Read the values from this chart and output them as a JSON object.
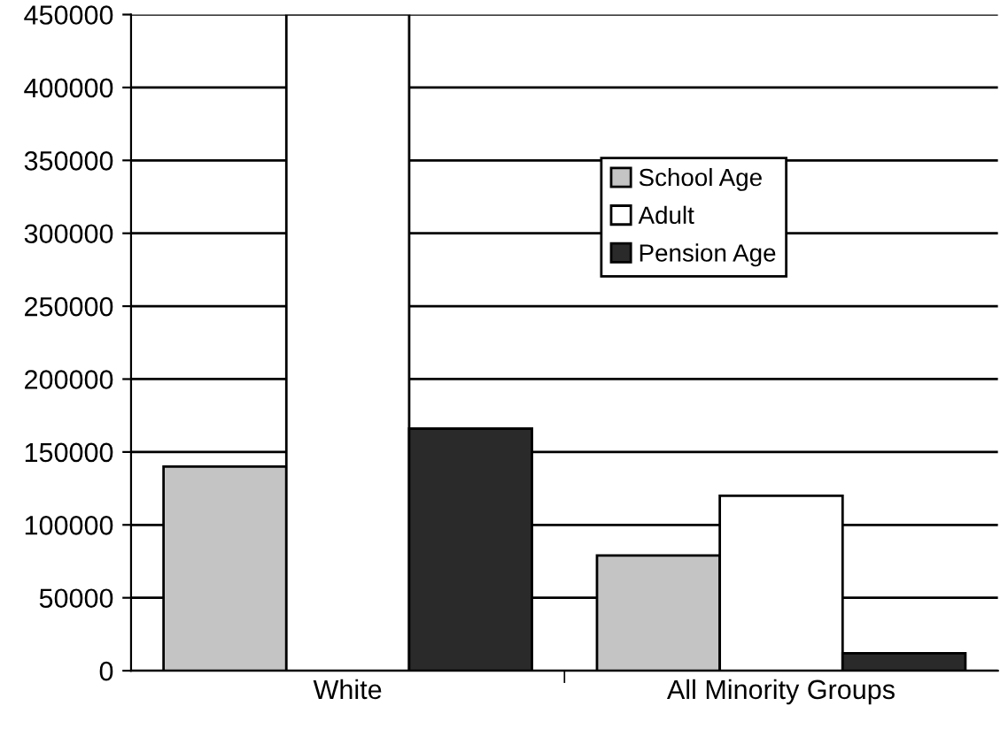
{
  "chart_data": {
    "type": "bar",
    "categories": [
      "White",
      "All Minority Groups"
    ],
    "series": [
      {
        "name": "School Age",
        "color": "#c4c4c4",
        "values": [
          140000,
          79000
        ]
      },
      {
        "name": "Adult",
        "color": "#ffffff",
        "values": [
          450000,
          120000
        ]
      },
      {
        "name": "Pension Age",
        "color": "#2a2a2a",
        "values": [
          166000,
          12000
        ]
      }
    ],
    "ylim": [
      0,
      450000
    ],
    "yticks": [
      0,
      50000,
      100000,
      150000,
      200000,
      250000,
      300000,
      350000,
      400000,
      450000
    ],
    "grid": "y",
    "legend": "top right"
  }
}
